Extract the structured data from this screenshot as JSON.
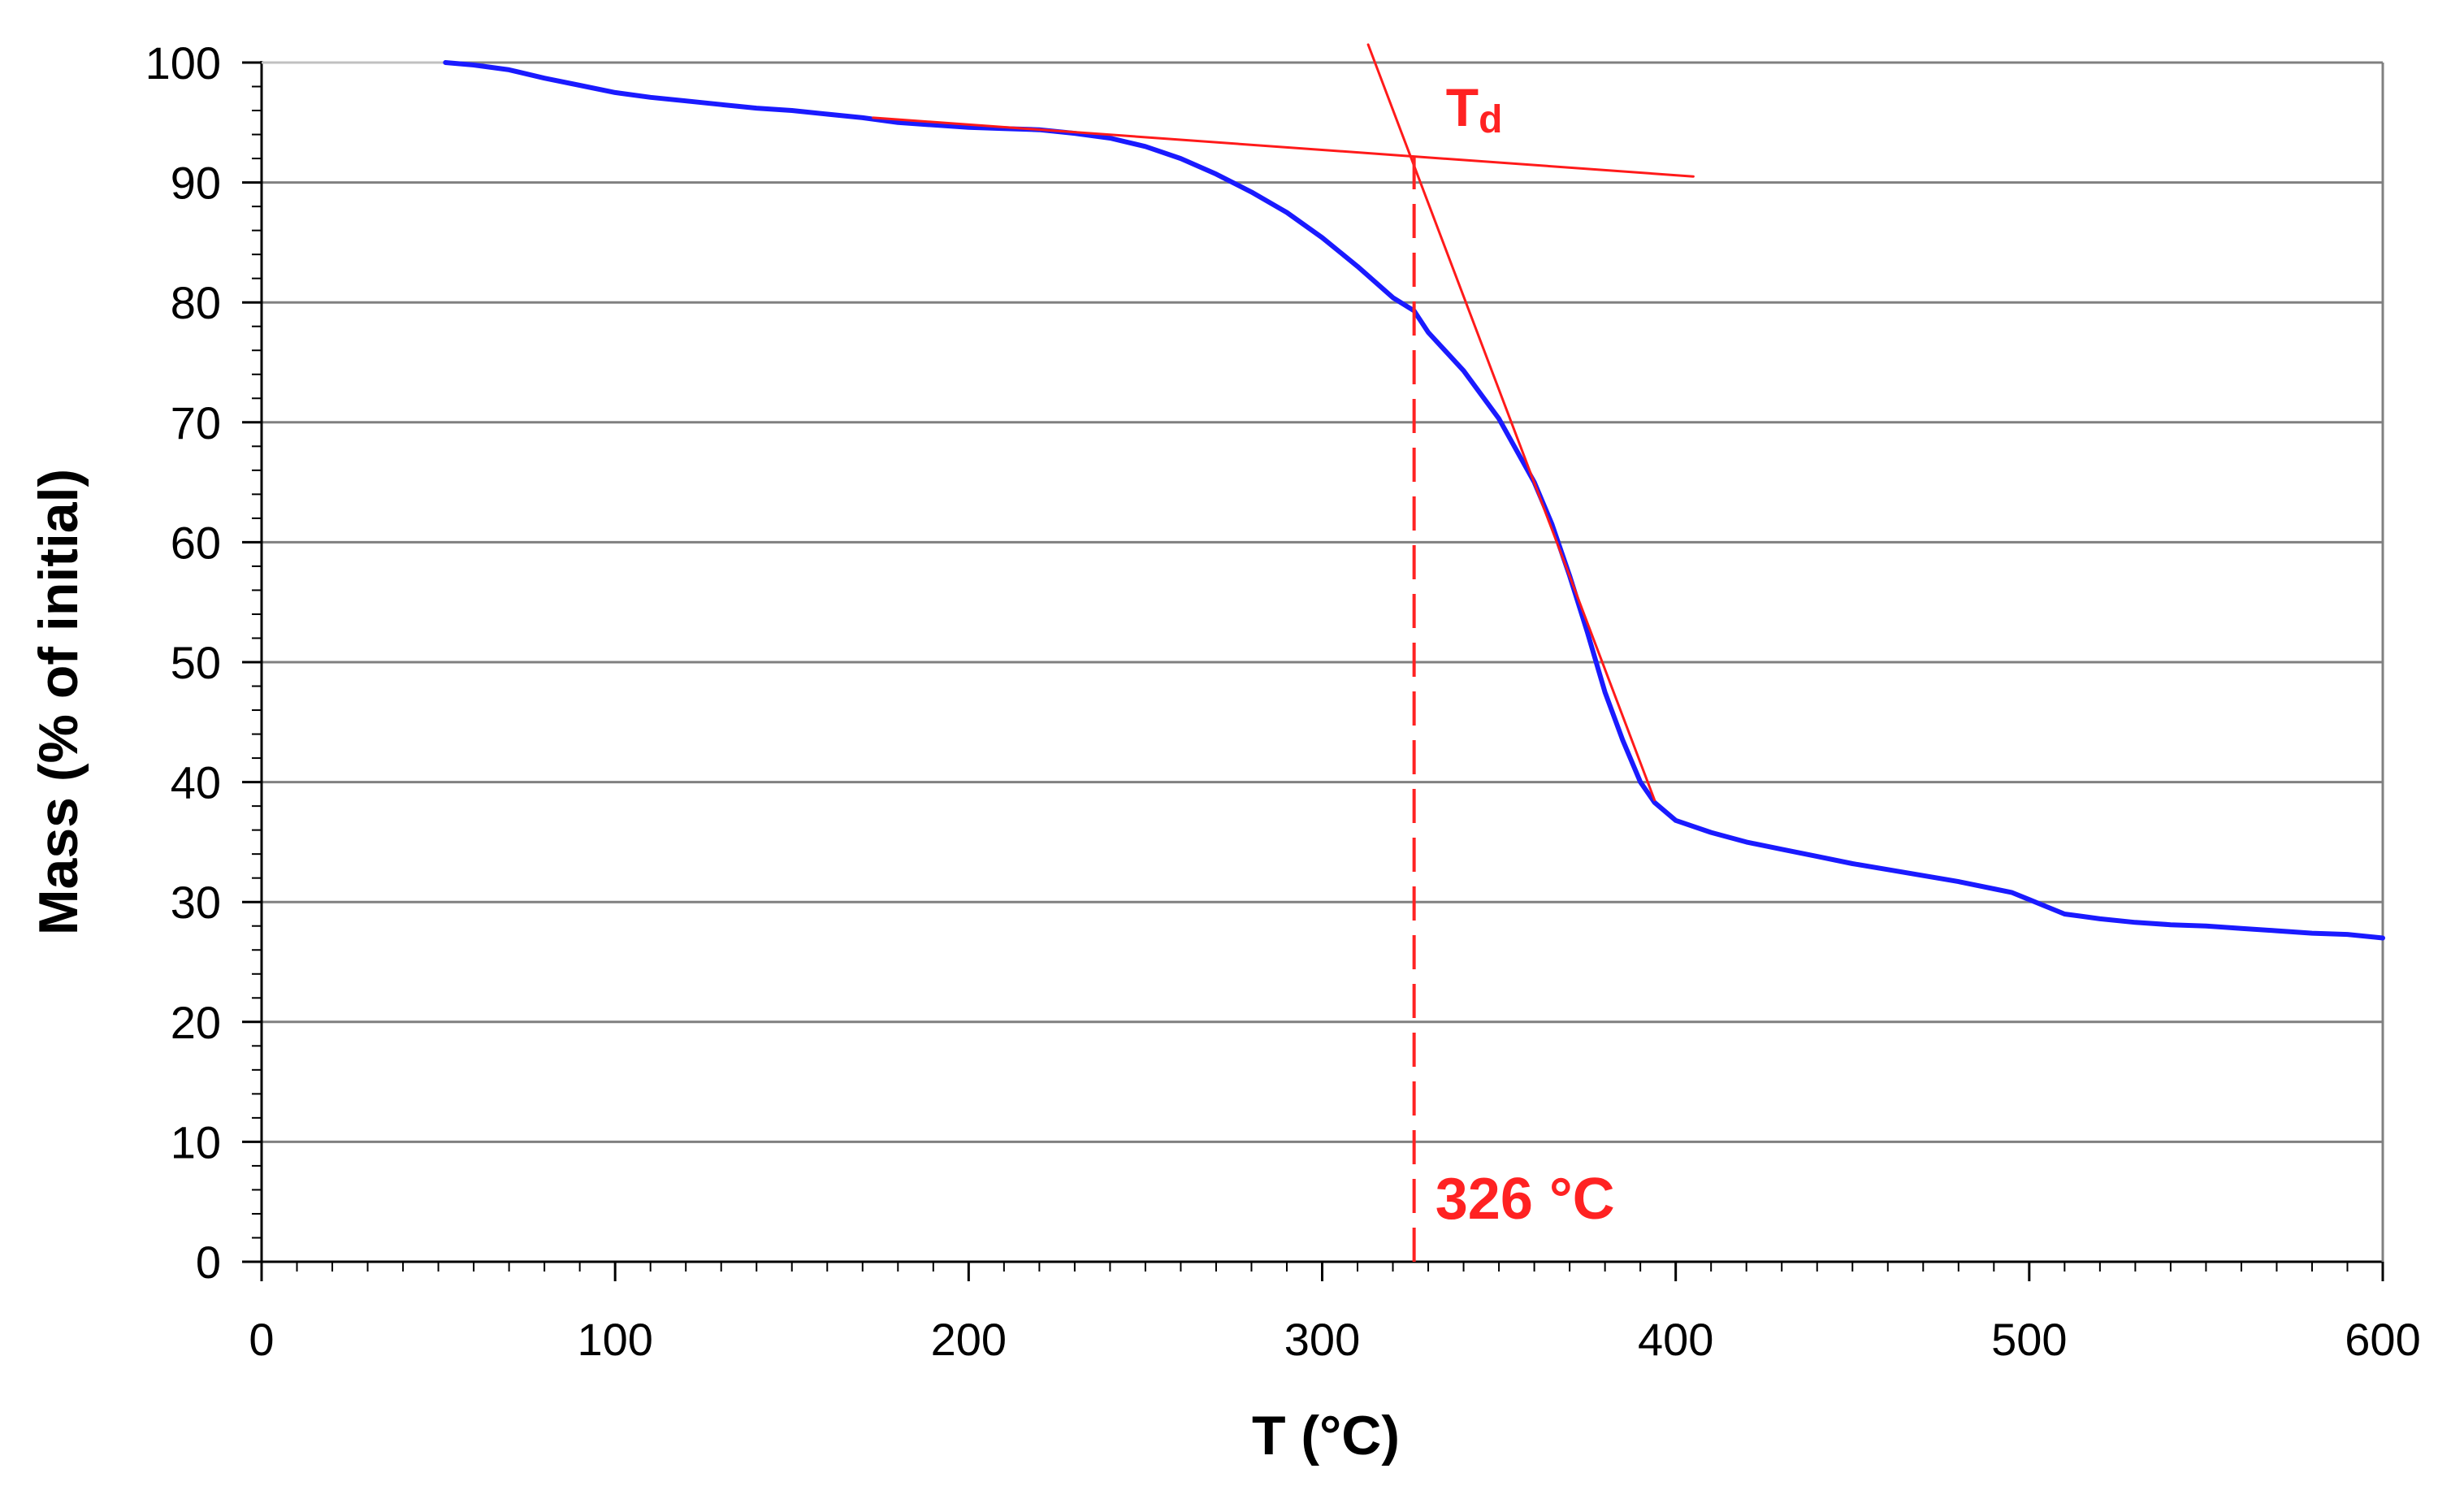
{
  "chart_data": {
    "type": "line",
    "title": "",
    "xlabel": "T (°C)",
    "ylabel": "Mass (% of initial)",
    "xlim": [
      0,
      600
    ],
    "ylim": [
      0,
      100
    ],
    "x_ticks": [
      0,
      100,
      200,
      300,
      400,
      500,
      600
    ],
    "x_tick_labels": [
      "0",
      "100",
      "200",
      "300",
      "400",
      "500",
      "600"
    ],
    "y_ticks": [
      0,
      10,
      20,
      30,
      40,
      50,
      60,
      70,
      80,
      90,
      100
    ],
    "y_tick_labels": [
      "0",
      "10",
      "20",
      "30",
      "40",
      "50",
      "60",
      "70",
      "80",
      "90",
      "100"
    ],
    "grid": "horizontal",
    "series": [
      {
        "name": "mass",
        "color": "#1a1aff",
        "x": [
          52,
          60,
          70,
          80,
          90,
          100,
          110,
          120,
          130,
          140,
          150,
          160,
          170,
          180,
          190,
          200,
          210,
          220,
          230,
          240,
          250,
          260,
          270,
          280,
          290,
          300,
          310,
          320,
          326,
          330,
          340,
          350,
          360,
          365,
          370,
          375,
          380,
          385,
          390,
          394,
          400,
          410,
          420,
          430,
          440,
          450,
          460,
          470,
          480,
          490,
          495,
          500,
          505,
          510,
          515,
          520,
          530,
          540,
          550,
          560,
          570,
          580,
          590,
          600
        ],
        "y": [
          100,
          99.8,
          99.4,
          98.7,
          98.1,
          97.5,
          97.1,
          96.8,
          96.5,
          96.2,
          96.0,
          95.7,
          95.4,
          95.0,
          94.8,
          94.6,
          94.5,
          94.4,
          94.1,
          93.7,
          93.0,
          92.0,
          90.7,
          89.2,
          87.5,
          85.4,
          83.0,
          80.4,
          79.3,
          77.5,
          74.3,
          70.3,
          65.0,
          61.5,
          57.2,
          52.5,
          47.5,
          43.5,
          40.0,
          38.3,
          36.8,
          35.8,
          35.0,
          34.4,
          33.8,
          33.2,
          32.7,
          32.2,
          31.7,
          31.1,
          30.8,
          30.2,
          29.6,
          29.0,
          28.8,
          28.6,
          28.3,
          28.1,
          28.0,
          27.8,
          27.6,
          27.4,
          27.3,
          27.0
        ]
      },
      {
        "name": "baseline tangent",
        "color": "#ff1a1a",
        "x": [
          173,
          405
        ],
        "y": [
          95.4,
          90.5
        ]
      },
      {
        "name": "inflection tangent",
        "color": "#ff1a1a",
        "x": [
          313,
          394
        ],
        "y": [
          101.5,
          38.5
        ]
      }
    ],
    "annotations": [
      {
        "text_main": "T",
        "text_sub": "d",
        "x": 335,
        "y": 94.7,
        "color": "#ff2222"
      },
      {
        "text": "326 °C",
        "x": 332,
        "y": 3.6,
        "color": "#ff2222"
      }
    ],
    "vertical_marker": {
      "x": 326,
      "y_from": 0,
      "y_to": 92.1,
      "style": "dashed",
      "color": "#ff2222"
    },
    "initial_flat_segment": {
      "x": [
        0,
        52
      ],
      "y": [
        100,
        100
      ],
      "color": "#c0c0c0"
    }
  }
}
